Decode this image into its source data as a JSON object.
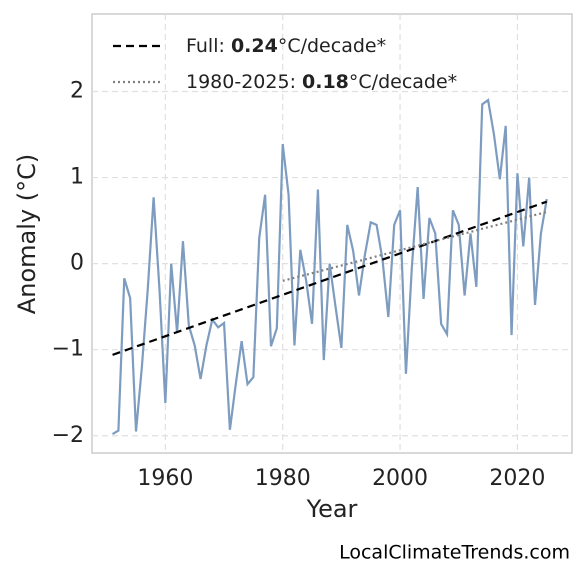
{
  "chart_data": {
    "type": "line",
    "xlabel": "Year",
    "ylabel": "Anomaly (°C)",
    "watermark": "LocalClimateTrends.com",
    "xlim": [
      1947.5,
      2029.3
    ],
    "ylim": [
      -2.2,
      2.9
    ],
    "xticks": [
      1960,
      1980,
      2000,
      2020
    ],
    "yticks": [
      {
        "value": -2,
        "label": "−2"
      },
      {
        "value": -1,
        "label": "−1"
      },
      0,
      1,
      2
    ],
    "grid": true,
    "legend": "upper left",
    "series": [
      {
        "name": "Anomaly",
        "color": "#7d9cc0",
        "style": "solid",
        "in_legend": false,
        "x": [
          1951,
          1952,
          1953,
          1954,
          1955,
          1956,
          1957,
          1958,
          1959,
          1960,
          1961,
          1962,
          1963,
          1964,
          1965,
          1966,
          1967,
          1968,
          1969,
          1970,
          1971,
          1972,
          1973,
          1974,
          1975,
          1976,
          1977,
          1978,
          1979,
          1980,
          1981,
          1982,
          1983,
          1984,
          1985,
          1986,
          1987,
          1988,
          1989,
          1990,
          1991,
          1992,
          1993,
          1994,
          1995,
          1996,
          1997,
          1998,
          1999,
          2000,
          2001,
          2002,
          2003,
          2004,
          2005,
          2006,
          2007,
          2008,
          2009,
          2010,
          2011,
          2012,
          2013,
          2014,
          2015,
          2016,
          2017,
          2018,
          2019,
          2020,
          2021,
          2022,
          2023,
          2024,
          2025
        ],
        "values": [
          -1.98,
          -1.94,
          -0.17,
          -0.4,
          -1.95,
          -1.2,
          -0.3,
          0.77,
          -0.3,
          -1.62,
          0.0,
          -0.8,
          0.26,
          -0.72,
          -0.95,
          -1.34,
          -0.95,
          -0.65,
          -0.74,
          -0.69,
          -1.93,
          -1.4,
          -0.9,
          -1.4,
          -1.32,
          0.3,
          0.8,
          -0.96,
          -0.75,
          1.39,
          0.8,
          -0.95,
          0.16,
          -0.2,
          -0.7,
          0.86,
          -1.12,
          0.0,
          -0.5,
          -0.98,
          0.45,
          0.15,
          -0.37,
          0.1,
          0.48,
          0.45,
          0.05,
          -0.62,
          0.45,
          0.62,
          -1.28,
          -0.05,
          0.89,
          -0.41,
          0.53,
          0.35,
          -0.7,
          -0.82,
          0.62,
          0.45,
          -0.37,
          0.35,
          -0.27,
          1.85,
          1.9,
          1.5,
          0.98,
          1.6,
          -0.83,
          1.05,
          0.2,
          1.0,
          -0.48,
          0.35,
          0.75
        ]
      },
      {
        "name_parts": [
          "Full: ",
          "0.24",
          "°C/decade*"
        ],
        "color": "#000000",
        "style": "dashed",
        "in_legend": true,
        "x": [
          1951,
          2025
        ],
        "values": [
          -1.06,
          0.72
        ]
      },
      {
        "name_parts": [
          "1980-2025: ",
          "0.18",
          "°C/decade*"
        ],
        "color": "#808080",
        "style": "dotted",
        "in_legend": true,
        "x": [
          1980,
          2025
        ],
        "values": [
          -0.2,
          0.6
        ]
      }
    ]
  }
}
